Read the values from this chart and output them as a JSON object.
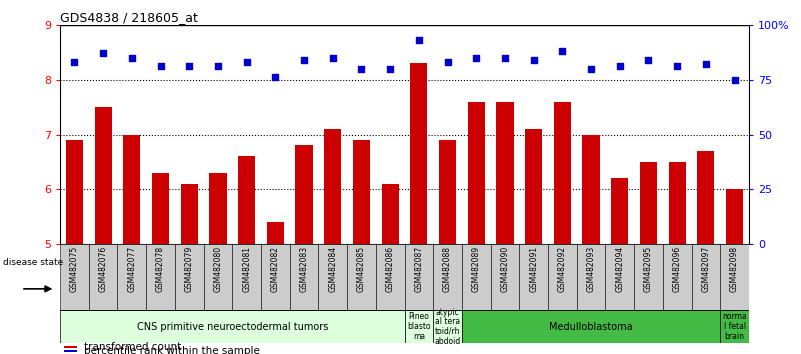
{
  "title": "GDS4838 / 218605_at",
  "samples": [
    "GSM482075",
    "GSM482076",
    "GSM482077",
    "GSM482078",
    "GSM482079",
    "GSM482080",
    "GSM482081",
    "GSM482082",
    "GSM482083",
    "GSM482084",
    "GSM482085",
    "GSM482086",
    "GSM482087",
    "GSM482088",
    "GSM482089",
    "GSM482090",
    "GSM482091",
    "GSM482092",
    "GSM482093",
    "GSM482094",
    "GSM482095",
    "GSM482096",
    "GSM482097",
    "GSM482098"
  ],
  "bar_values": [
    6.9,
    7.5,
    7.0,
    6.3,
    6.1,
    6.3,
    6.6,
    5.4,
    6.8,
    7.1,
    6.9,
    6.1,
    8.3,
    6.9,
    7.6,
    7.6,
    7.1,
    7.6,
    7.0,
    6.2,
    6.5,
    6.5,
    6.7,
    6.0
  ],
  "percentile_values": [
    83,
    87,
    85,
    81,
    81,
    81,
    83,
    76,
    84,
    85,
    80,
    80,
    93,
    83,
    85,
    85,
    84,
    88,
    80,
    81,
    84,
    81,
    82,
    75
  ],
  "bar_color": "#cc0000",
  "dot_color": "#0000cc",
  "ylim_left": [
    5,
    9
  ],
  "ylim_right": [
    0,
    100
  ],
  "yticks_left": [
    5,
    6,
    7,
    8,
    9
  ],
  "yticks_right": [
    0,
    25,
    50,
    75,
    100
  ],
  "ytick_labels_right": [
    "0",
    "25",
    "50",
    "75",
    "100%"
  ],
  "groups": [
    {
      "label": "CNS primitive neuroectodermal tumors",
      "start": 0,
      "end": 11,
      "color": "#ddffdd"
    },
    {
      "label": "Pineo\nblasto\nma",
      "start": 12,
      "end": 12,
      "color": "#ddffdd"
    },
    {
      "label": "atypic\nal tera\ntoid/rh\nabdoid",
      "start": 13,
      "end": 13,
      "color": "#ddffdd"
    },
    {
      "label": "Medulloblastoma",
      "start": 14,
      "end": 22,
      "color": "#44bb44"
    },
    {
      "label": "norma\nl fetal\nbrain",
      "start": 23,
      "end": 23,
      "color": "#44bb44"
    }
  ],
  "disease_state_label": "disease state",
  "legend_bar_label": "transformed count",
  "legend_dot_label": "percentile rank within the sample",
  "plot_bg": "#ffffff",
  "tick_label_bg": "#cccccc"
}
